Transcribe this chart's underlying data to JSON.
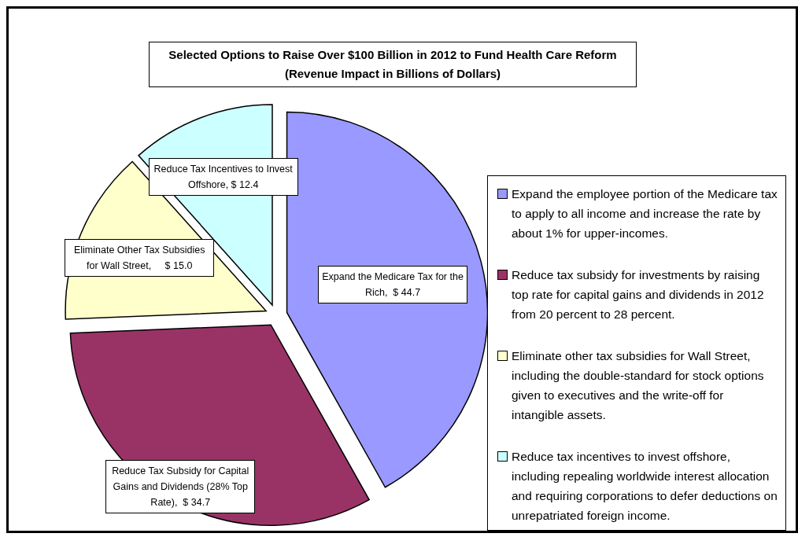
{
  "chart_data": {
    "type": "pie",
    "title": "Selected Options to Raise Over $100 Billion in 2012 to Fund Health Care Reform",
    "subtitle": "(Revenue Impact in Billions of Dollars)",
    "categories": [
      "Expand the employee portion of the Medicare tax to apply to all income and increase the rate by about 1% for upper-incomes.",
      "Reduce tax subsidy for investments by raising top rate for capital gains and dividends in 2012 from 20 percent to 28 percent.",
      "Eliminate other tax subsidies for Wall Street, including the double-standard for stock options given to executives and the write-off for intangible assets.",
      "Reduce tax incentives to invest offshore, including repealing worldwide interest allocation and requiring corporations to defer deductions on unrepatriated foreign income."
    ],
    "values": [
      44.7,
      34.7,
      15.0,
      12.4
    ],
    "colors": [
      "#9999ff",
      "#993366",
      "#ffffcc",
      "#ccffff"
    ],
    "value_labels": [
      "Expand the Medicare Tax for the Rich,  $ 44.7",
      "Reduce Tax Subsidy for Capital Gains and Dividends (28% Top Rate),  $ 34.7",
      "Eliminate Other Tax Subsidies for Wall Street,     $ 15.0",
      "Reduce Tax Incentives to Invest Offshore, $ 12.4"
    ],
    "legend": "right"
  }
}
